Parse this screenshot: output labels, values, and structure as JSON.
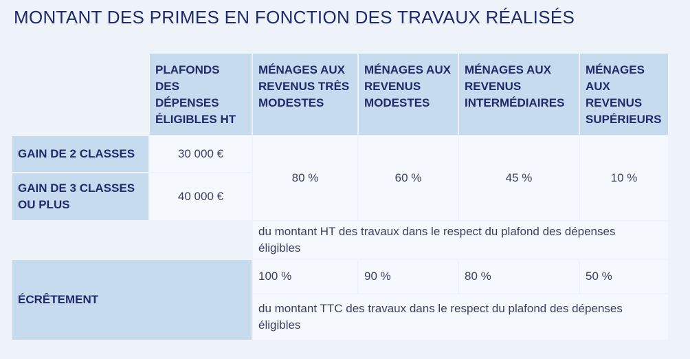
{
  "title": "MONTANT DES PRIMES EN FONCTION DES TRAVAUX RÉALISÉS",
  "table": {
    "header": [
      "PLAFONDS DES DÉPENSES ÉLIGIBLES HT",
      "MÉNAGES AUX REVENUS TRÈS MODESTES",
      "MÉNAGES AUX REVENUS MODESTES",
      "MÉNAGES AUX REVENUS INTERMÉDIAIRES",
      "MÉNAGES AUX REVENUS SUPÉRIEURS"
    ],
    "gain_rows": [
      {
        "label": "GAIN DE 2 CLASSES",
        "ceiling": "30 000 €"
      },
      {
        "label": "GAIN DE 3 CLASSES OU PLUS",
        "ceiling": "40 000 €"
      }
    ],
    "rates": [
      "80 %",
      "60 %",
      "45 %",
      "10 %"
    ],
    "rates_note": "du montant HT des travaux dans le respect du plafond des dépenses éligibles",
    "ecretement": {
      "label": "ÉCRÊTEMENT",
      "rates": [
        "100 %",
        "90 %",
        "80 %",
        "50 %"
      ],
      "note": "du montant TTC des travaux dans le respect du plafond des dépenses éligibles"
    }
  }
}
